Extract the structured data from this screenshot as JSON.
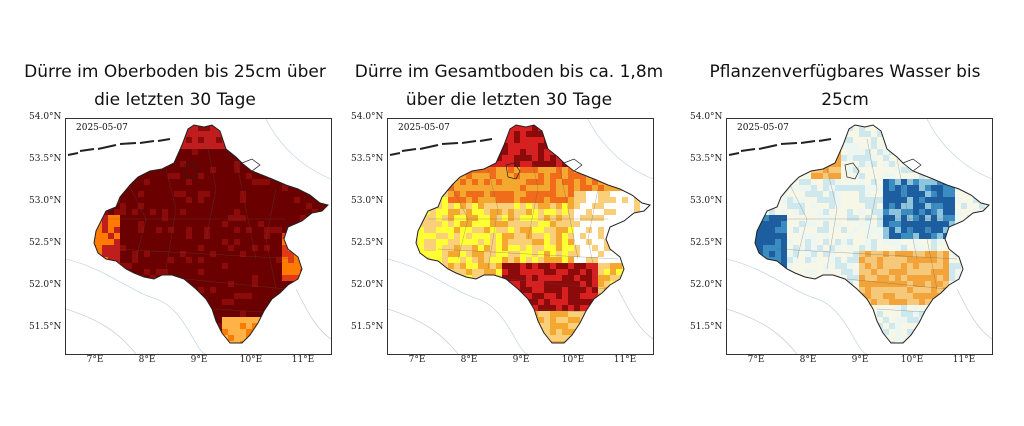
{
  "panels": [
    {
      "title_line1": "Dürre im Oberboden bis 25cm über",
      "title_line2": "die letzten 30 Tage",
      "date": "2025-05-07",
      "palette": "drought_top"
    },
    {
      "title_line1": "Dürre im Gesamtboden bis ca. 1,8m",
      "title_line2": "über die letzten 30 Tage",
      "date": "2025-05-07",
      "palette": "drought_total"
    },
    {
      "title_line1": "Pflanzenverfügbares Wasser bis",
      "title_line2": "25cm",
      "date": "2025-05-07",
      "palette": "plant_water"
    }
  ],
  "axis": {
    "lat_ticks": [
      "54.0°N",
      "53.5°N",
      "53.0°N",
      "52.5°N",
      "52.0°N",
      "51.5°N"
    ],
    "lon_ticks": [
      "7°E",
      "8°E",
      "9°E",
      "10°E",
      "11°E"
    ]
  },
  "colors": {
    "drought_top": [
      "#6b0000",
      "#8b0a0a",
      "#c01e1e",
      "#e23a17",
      "#ff7a00",
      "#ffb347"
    ],
    "drought_total": [
      "#8b0a0a",
      "#d82020",
      "#f06c1a",
      "#f4a830",
      "#f9cf7a",
      "#ffff33",
      "#ffffff"
    ],
    "plant_water": [
      "#f7f7e8",
      "#eef6f2",
      "#cfe8ee",
      "#8ec5dc",
      "#3b8cc0",
      "#1c5ea0",
      "#f2a33a",
      "#f6c87a"
    ]
  }
}
